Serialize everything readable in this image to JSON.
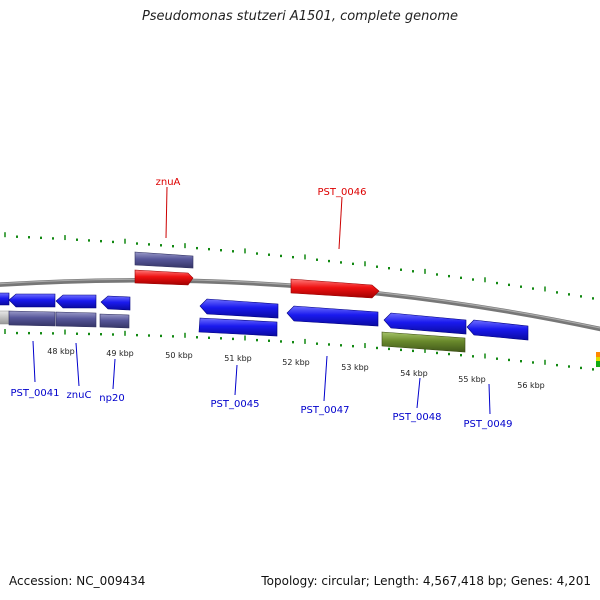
{
  "header": {
    "title": "Pseudomonas stutzeri A1501, complete genome"
  },
  "footer": {
    "accession": "Accession: NC_009434",
    "topology": "Topology: circular; Length: 4,567,418 bp; Genes: 4,201"
  },
  "colors": {
    "forward_gene": "#ee1111",
    "reverse_gene": "#1111dd",
    "cds_block": "#565699",
    "rna_block": "#66882a",
    "backbone": "#888888",
    "ticks": "#118811",
    "forward_label": "#dd0000",
    "reverse_label": "#0000cc"
  },
  "ticks": [
    "48 kbp",
    "49 kbp",
    "50 kbp",
    "51 kbp",
    "52 kbp",
    "53 kbp",
    "54 kbp",
    "55 kbp",
    "56 kbp"
  ],
  "gene_labels": {
    "znuA": "znuA",
    "PST_0046": "PST_0046",
    "PST_0041": "PST_0041",
    "znuC": "znuC",
    "np20": "np20",
    "PST_0045": "PST_0045",
    "PST_0047": "PST_0047",
    "PST_0048": "PST_0048",
    "PST_0049": "PST_0049"
  }
}
